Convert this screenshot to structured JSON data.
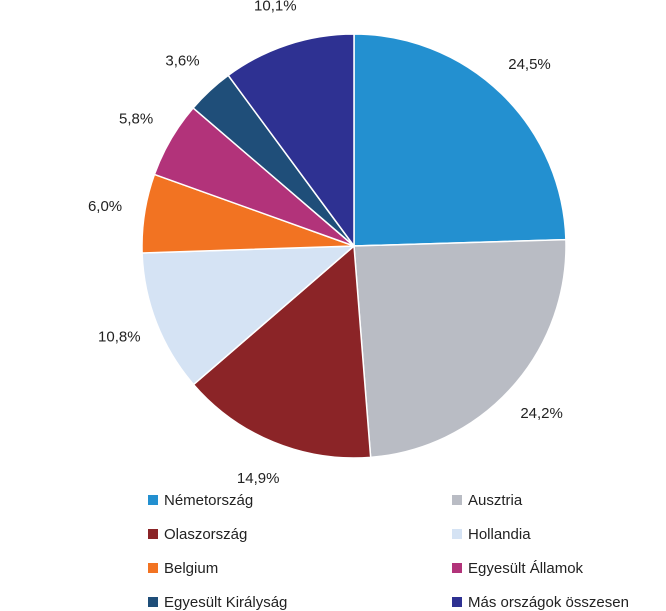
{
  "chart_data": {
    "type": "pie",
    "categories": [
      "Németország",
      "Ausztria",
      "Olaszország",
      "Hollandia",
      "Belgium",
      "Egyesült Államok",
      "Egyesült Királyság",
      "Más országok összesen"
    ],
    "values": [
      24.5,
      24.2,
      14.9,
      10.8,
      6.0,
      5.8,
      3.6,
      10.1
    ],
    "value_labels": [
      "24,5%",
      "24,2%",
      "14,9%",
      "10,8%",
      "6,0%",
      "5,8%",
      "3,6%",
      "10,1%"
    ],
    "colors": [
      "#2390d0",
      "#b9bcc4",
      "#8b2427",
      "#d5e3f4",
      "#f27322",
      "#b2337a",
      "#1f4e79",
      "#2e3192"
    ],
    "legend": "bottom"
  }
}
